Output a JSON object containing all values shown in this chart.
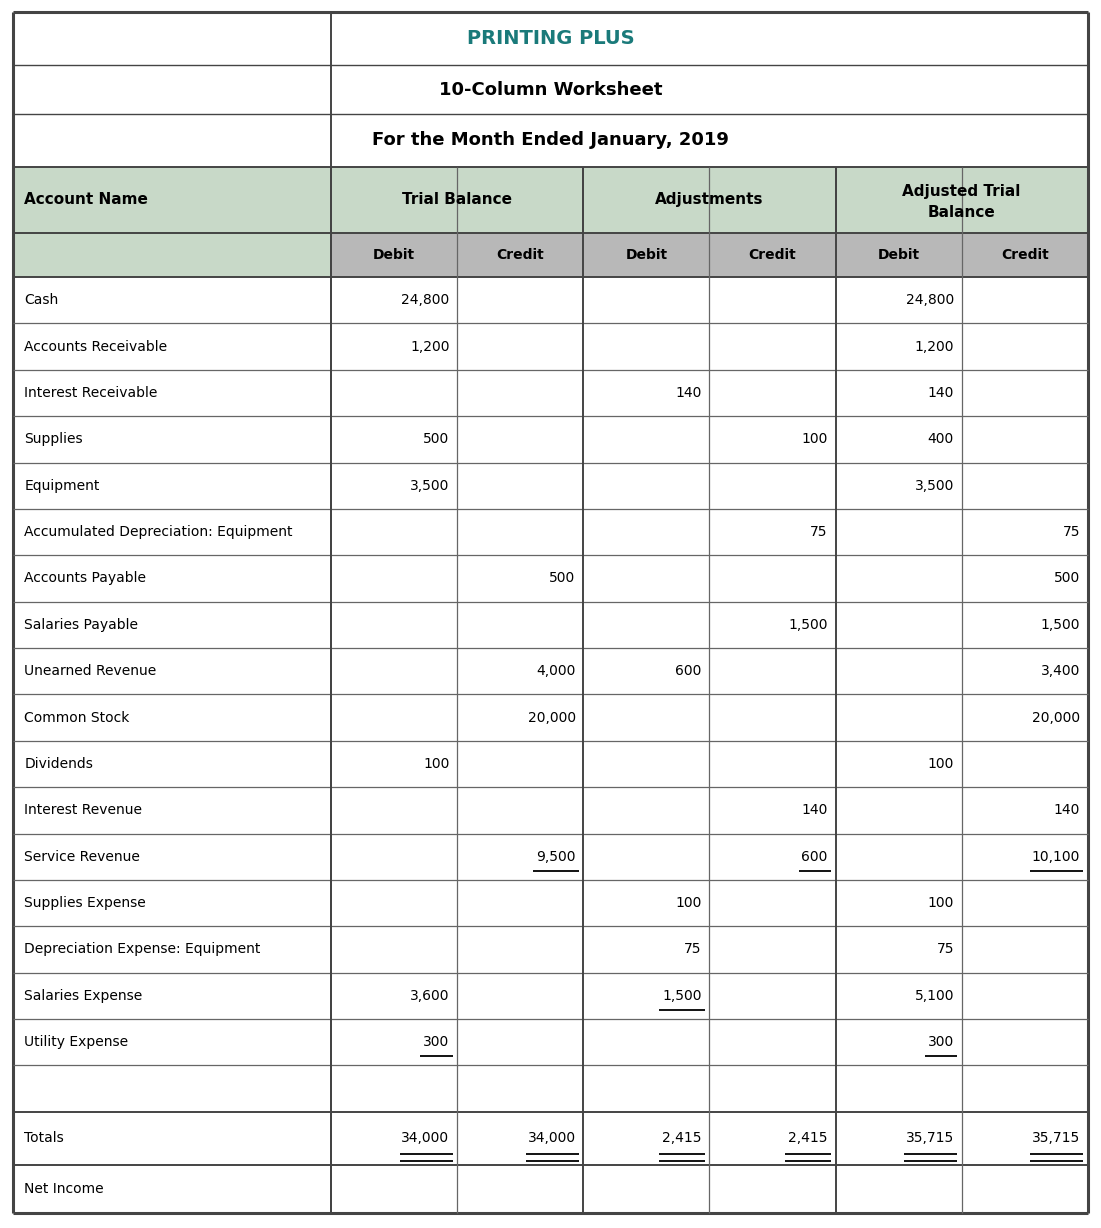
{
  "title1": "PRINTING PLUS",
  "title2": "10-Column Worksheet",
  "title3": "For the Month Ended January, 2019",
  "title1_color": "#1a7a7a",
  "header_bg": "#c8d9c8",
  "debit_credit_bg": "#b8b8b8",
  "border_color": "#444444",
  "inner_border_color": "#666666",
  "rows": [
    {
      "name": "Cash",
      "vals": [
        "24,800",
        "",
        "",
        "",
        "24,800",
        ""
      ],
      "ul": [
        false,
        false,
        false,
        false,
        false,
        false
      ]
    },
    {
      "name": "Accounts Receivable",
      "vals": [
        "1,200",
        "",
        "",
        "",
        "1,200",
        ""
      ],
      "ul": [
        false,
        false,
        false,
        false,
        false,
        false
      ]
    },
    {
      "name": "Interest Receivable",
      "vals": [
        "",
        "",
        "140",
        "",
        "140",
        ""
      ],
      "ul": [
        false,
        false,
        false,
        false,
        false,
        false
      ]
    },
    {
      "name": "Supplies",
      "vals": [
        "500",
        "",
        "",
        "100",
        "400",
        ""
      ],
      "ul": [
        false,
        false,
        false,
        false,
        false,
        false
      ]
    },
    {
      "name": "Equipment",
      "vals": [
        "3,500",
        "",
        "",
        "",
        "3,500",
        ""
      ],
      "ul": [
        false,
        false,
        false,
        false,
        false,
        false
      ]
    },
    {
      "name": "Accumulated Depreciation: Equipment",
      "vals": [
        "",
        "",
        "",
        "75",
        "",
        "75"
      ],
      "ul": [
        false,
        false,
        false,
        false,
        false,
        false
      ]
    },
    {
      "name": "Accounts Payable",
      "vals": [
        "",
        "500",
        "",
        "",
        "",
        "500"
      ],
      "ul": [
        false,
        false,
        false,
        false,
        false,
        false
      ]
    },
    {
      "name": "Salaries Payable",
      "vals": [
        "",
        "",
        "",
        "1,500",
        "",
        "1,500"
      ],
      "ul": [
        false,
        false,
        false,
        false,
        false,
        false
      ]
    },
    {
      "name": "Unearned Revenue",
      "vals": [
        "",
        "4,000",
        "600",
        "",
        "",
        "3,400"
      ],
      "ul": [
        false,
        false,
        false,
        false,
        false,
        false
      ]
    },
    {
      "name": "Common Stock",
      "vals": [
        "",
        "20,000",
        "",
        "",
        "",
        "20,000"
      ],
      "ul": [
        false,
        false,
        false,
        false,
        false,
        false
      ]
    },
    {
      "name": "Dividends",
      "vals": [
        "100",
        "",
        "",
        "",
        "100",
        ""
      ],
      "ul": [
        false,
        false,
        false,
        false,
        false,
        false
      ]
    },
    {
      "name": "Interest Revenue",
      "vals": [
        "",
        "",
        "",
        "140",
        "",
        "140"
      ],
      "ul": [
        false,
        false,
        false,
        false,
        false,
        false
      ]
    },
    {
      "name": "Service Revenue",
      "vals": [
        "",
        "9,500",
        "",
        "600",
        "",
        "10,100"
      ],
      "ul": [
        false,
        true,
        false,
        true,
        false,
        true
      ]
    },
    {
      "name": "Supplies Expense",
      "vals": [
        "",
        "",
        "100",
        "",
        "100",
        ""
      ],
      "ul": [
        false,
        false,
        false,
        false,
        false,
        false
      ]
    },
    {
      "name": "Depreciation Expense: Equipment",
      "vals": [
        "",
        "",
        "75",
        "",
        "75",
        ""
      ],
      "ul": [
        false,
        false,
        false,
        false,
        false,
        false
      ]
    },
    {
      "name": "Salaries Expense",
      "vals": [
        "3,600",
        "",
        "1,500",
        "",
        "5,100",
        ""
      ],
      "ul": [
        false,
        false,
        true,
        false,
        false,
        false
      ]
    },
    {
      "name": "Utility Expense",
      "vals": [
        "300",
        "",
        "",
        "",
        "300",
        ""
      ],
      "ul": [
        true,
        false,
        false,
        false,
        true,
        false
      ]
    },
    {
      "name": "",
      "vals": [
        "",
        "",
        "",
        "",
        "",
        ""
      ],
      "ul": [
        false,
        false,
        false,
        false,
        false,
        false
      ]
    }
  ],
  "totals_vals": [
    "34,000",
    "34,000",
    "2,415",
    "2,415",
    "35,715",
    "35,715"
  ],
  "fig_width": 11.01,
  "fig_height": 12.28
}
